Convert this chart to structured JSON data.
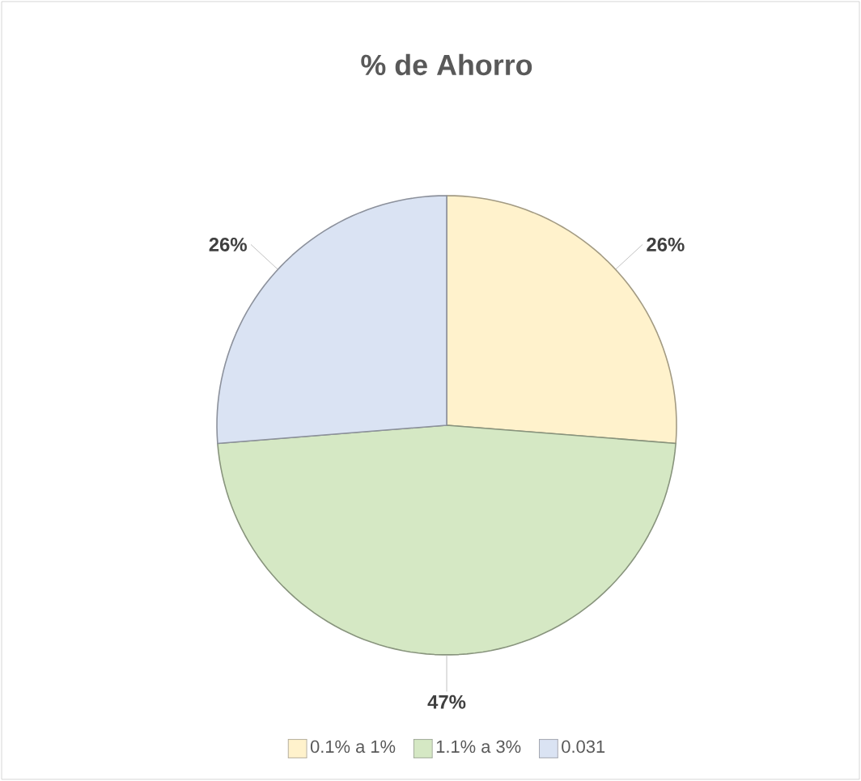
{
  "chart_data": {
    "type": "pie",
    "title": "% de Ahorro",
    "categories": [
      "0.1% a 1%",
      "1.1% a 3%",
      "0.031"
    ],
    "values": [
      26,
      47,
      26
    ],
    "value_labels": [
      "26%",
      "47%",
      "26%"
    ],
    "colors": [
      "#fff2cc",
      "#d5e8c4",
      "#dae3f3"
    ],
    "legend": "bottom"
  }
}
